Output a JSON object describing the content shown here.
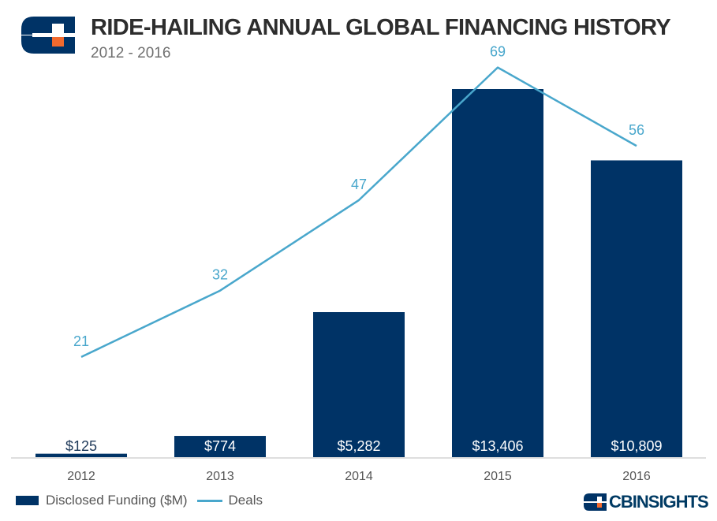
{
  "title": "RIDE-HAILING ANNUAL GLOBAL FINANCING HISTORY",
  "subtitle": "2012 - 2016",
  "brand": "CBINSIGHTS",
  "colors": {
    "bar": "#003366",
    "line": "#49a7cc",
    "logo_orange": "#f26a2e"
  },
  "chart_data": {
    "type": "bar",
    "categories": [
      "2012",
      "2013",
      "2014",
      "2015",
      "2016"
    ],
    "series": [
      {
        "name": "Disclosed Funding ($M)",
        "type": "bar",
        "values": [
          125,
          774,
          5282,
          13406,
          10809
        ],
        "labels": [
          "$125",
          "$774",
          "$5,282",
          "$13,406",
          "$10,809"
        ]
      },
      {
        "name": "Deals",
        "type": "line",
        "values": [
          21,
          32,
          47,
          69,
          56
        ],
        "labels": [
          "21",
          "32",
          "47",
          "69",
          "56"
        ]
      }
    ],
    "legend_position": "bottom-left",
    "grid": false
  }
}
